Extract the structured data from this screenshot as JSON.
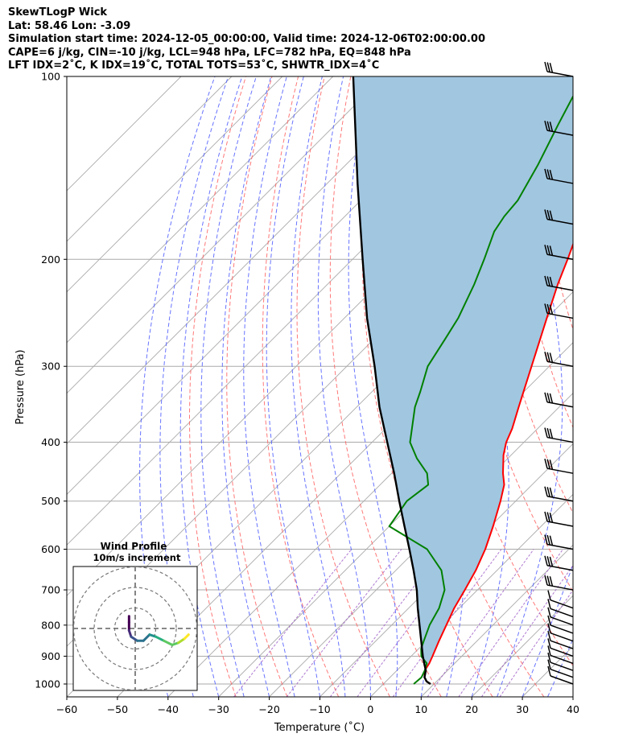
{
  "header": {
    "line1": "SkewTLogP Wick",
    "line2": "Lat: 58.46   Lon: -3.09",
    "line3": "Simulation start time: 2024-12-05_00:00:00, Valid time: 2024-12-06T02:00:00.00",
    "line4": "CAPE=6 j/kg, CIN=-10 j/kg, LCL=948 hPa, LFC=782 hPa, EQ=848 hPa",
    "line5": "LFT IDX=2˚C, K IDX=19˚C, TOTAL TOTS=53˚C, SHWTR_IDX=4˚C"
  },
  "chart_data": [
    {
      "type": "skewt",
      "xlabel": "Temperature (˚C)",
      "ylabel": "Pressure (hPa)",
      "xlim": [
        -60,
        40
      ],
      "ylim": [
        1050,
        100
      ],
      "x_ticks": [
        "−60",
        "−50",
        "−40",
        "−30",
        "−20",
        "−10",
        "0",
        "10",
        "20",
        "30",
        "40"
      ],
      "x_tick_values": [
        -60,
        -50,
        -40,
        -30,
        -20,
        -10,
        0,
        10,
        20,
        30,
        40
      ],
      "y_ticks": [
        "100",
        "200",
        "300",
        "400",
        "500",
        "600",
        "700",
        "800",
        "900",
        "1000"
      ],
      "y_tick_values": [
        100,
        200,
        300,
        400,
        500,
        600,
        700,
        800,
        900,
        1000
      ],
      "colors": {
        "temperature": "#ff0000",
        "dewpoint": "#008000",
        "parcel": "#000000",
        "cape_fill": "#a1c6e0",
        "dry_adiabats": "#ff6060",
        "moist_adiabats": "#4d5cff",
        "mixing_ratio": "#9a58c4",
        "isotherms": "#aaaaaa",
        "isobars": "#aaaaaa"
      },
      "series": [
        {
          "name": "Temperature",
          "points": [
            [
              1000,
              9.3
            ],
            [
              990,
              8.0
            ],
            [
              975,
              6.8
            ],
            [
              950,
              5.5
            ],
            [
              925,
              5.0
            ],
            [
              900,
              4.2
            ],
            [
              850,
              2.5
            ],
            [
              800,
              0.8
            ],
            [
              750,
              -1.0
            ],
            [
              700,
              -2.5
            ],
            [
              650,
              -4.2
            ],
            [
              600,
              -6.5
            ],
            [
              550,
              -9.5
            ],
            [
              500,
              -13.0
            ],
            [
              470,
              -15.5
            ],
            [
              450,
              -18.0
            ],
            [
              420,
              -21.5
            ],
            [
              400,
              -23.5
            ],
            [
              380,
              -25.0
            ],
            [
              350,
              -28.0
            ],
            [
              300,
              -33.5
            ],
            [
              250,
              -40.0
            ],
            [
              220,
              -44.5
            ],
            [
              200,
              -47.5
            ],
            [
              180,
              -51.0
            ],
            [
              160,
              -56.0
            ],
            [
              150,
              -59.0
            ],
            [
              140,
              -62.0
            ],
            [
              120,
              -69.0
            ],
            [
              110,
              -73.0
            ],
            [
              100,
              -77.0
            ]
          ]
        },
        {
          "name": "Dewpoint",
          "points": [
            [
              1000,
              6.0
            ],
            [
              975,
              6.2
            ],
            [
              950,
              5.5
            ],
            [
              925,
              4.5
            ],
            [
              900,
              2.0
            ],
            [
              875,
              0.5
            ],
            [
              850,
              -0.5
            ],
            [
              800,
              -2.5
            ],
            [
              750,
              -4.0
            ],
            [
              700,
              -6.5
            ],
            [
              650,
              -11.0
            ],
            [
              600,
              -18.0
            ],
            [
              550,
              -30.0
            ],
            [
              500,
              -31.5
            ],
            [
              470,
              -30.5
            ],
            [
              450,
              -33.0
            ],
            [
              425,
              -38.0
            ],
            [
              400,
              -42.5
            ],
            [
              350,
              -48.5
            ],
            [
              330,
              -50.5
            ],
            [
              300,
              -54.0
            ],
            [
              270,
              -56.0
            ],
            [
              250,
              -57.5
            ],
            [
              220,
              -61.0
            ],
            [
              200,
              -64.0
            ],
            [
              180,
              -67.5
            ],
            [
              170,
              -68.5
            ],
            [
              160,
              -69.0
            ],
            [
              140,
              -72.0
            ],
            [
              120,
              -76.0
            ],
            [
              100,
              -80.5
            ]
          ]
        },
        {
          "name": "Parcel",
          "points": [
            [
              1000,
              9.3
            ],
            [
              990,
              8.0
            ],
            [
              975,
              6.8
            ],
            [
              950,
              5.7
            ],
            [
              925,
              4.0
            ],
            [
              900,
              2.3
            ],
            [
              850,
              -1.0
            ],
            [
              800,
              -4.5
            ],
            [
              750,
              -8.2
            ],
            [
              700,
              -12.0
            ],
            [
              650,
              -16.5
            ],
            [
              600,
              -21.5
            ],
            [
              550,
              -27.0
            ],
            [
              500,
              -33.0
            ],
            [
              450,
              -39.5
            ],
            [
              400,
              -47.0
            ],
            [
              350,
              -55.5
            ],
            [
              300,
              -64.5
            ],
            [
              250,
              -75.5
            ],
            [
              200,
              -88.0
            ],
            [
              150,
              -104.0
            ],
            [
              100,
              -126.0
            ]
          ]
        }
      ],
      "wind_barb_levels": [
        1000,
        975,
        950,
        925,
        900,
        875,
        850,
        825,
        800,
        775,
        750,
        700,
        650,
        600,
        550,
        500,
        450,
        400,
        350,
        300,
        250,
        225,
        200,
        175,
        150,
        125,
        100
      ],
      "annotations": []
    },
    {
      "type": "hodograph",
      "title": "Wind Profile",
      "subtitle": "10m/s increment",
      "rings": [
        10,
        20,
        30
      ],
      "colormap": "viridis",
      "points": [
        [
          -3,
          6
        ],
        [
          -3,
          3
        ],
        [
          -3,
          -1
        ],
        [
          -2,
          -4
        ],
        [
          1,
          -6
        ],
        [
          4,
          -6
        ],
        [
          7,
          -3
        ],
        [
          10,
          -4
        ],
        [
          14,
          -6
        ],
        [
          18,
          -8
        ],
        [
          21,
          -7
        ],
        [
          24,
          -5
        ],
        [
          26,
          -3
        ]
      ]
    }
  ]
}
